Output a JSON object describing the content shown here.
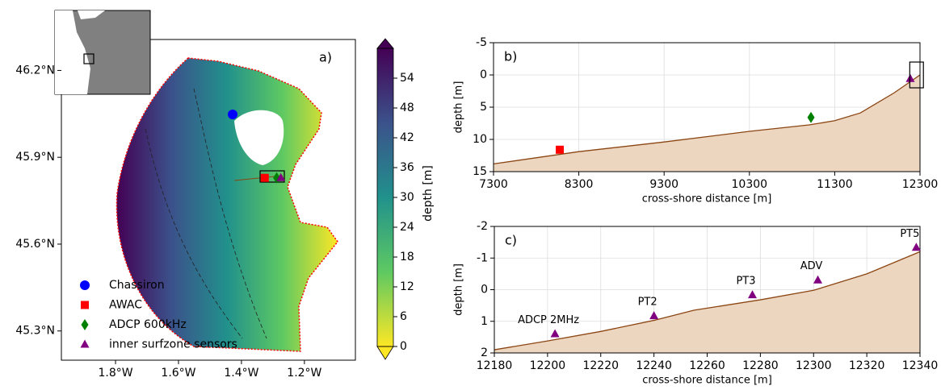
{
  "chart_data": [
    {
      "type": "map",
      "panel_label": "a)",
      "xlim": [
        -1.972,
        -1.038
      ],
      "ylim": [
        45.199,
        46.307
      ],
      "xticks": [
        {
          "value": -1.8,
          "label": "1.8°W"
        },
        {
          "value": -1.6,
          "label": "1.6°W"
        },
        {
          "value": -1.4,
          "label": "1.4°W"
        },
        {
          "value": -1.2,
          "label": "1.2°W"
        }
      ],
      "yticks": [
        {
          "value": 45.3,
          "label": "45.3°N"
        },
        {
          "value": 45.6,
          "label": "45.6°N"
        },
        {
          "value": 45.9,
          "label": "45.9°N"
        },
        {
          "value": 46.2,
          "label": "46.2°N"
        }
      ],
      "legend": "lower left",
      "points": [
        {
          "name": "Chassiron",
          "x": -1.428,
          "y": 46.048,
          "color": "#0000ff",
          "marker": "circle"
        },
        {
          "name": "AWAC",
          "x": -1.326,
          "y": 45.829,
          "color": "#ff0000",
          "marker": "square"
        },
        {
          "name": "ADCP 600kHz",
          "x": -1.288,
          "y": 45.829,
          "color": "#008000",
          "marker": "diamond"
        },
        {
          "name": "inner surfzone sensors",
          "x": -1.275,
          "y": 45.829,
          "color": "#800080",
          "marker": "triangle"
        }
      ],
      "colorbar": {
        "label": "depth [m]",
        "lim": [
          0,
          60
        ],
        "ticks": [
          0,
          6,
          12,
          18,
          24,
          30,
          36,
          42,
          48,
          54
        ]
      }
    },
    {
      "type": "area",
      "panel_label": "b)",
      "xlabel": "cross-shore distance [m]",
      "ylabel": "depth [m]",
      "xlim": [
        7300,
        12300
      ],
      "ylim": [
        15,
        -5
      ],
      "xticks": [
        7300,
        8300,
        9300,
        10300,
        11300,
        12300
      ],
      "yticks": [
        -5,
        0,
        5,
        10,
        15
      ],
      "grid": true,
      "profile": {
        "x": [
          7300,
          8300,
          9300,
          10300,
          11000,
          11300,
          11600,
          12000,
          12300
        ],
        "values": [
          13.8,
          11.9,
          10.4,
          8.75,
          7.75,
          7.1,
          5.9,
          2.75,
          0
        ],
        "color": "#8b4513",
        "fill": "#ecd6bf"
      },
      "points": [
        {
          "x": 8077,
          "y": 11.6,
          "color": "#ff0000",
          "marker": "square"
        },
        {
          "x": 11022,
          "y": 6.6,
          "color": "#008000",
          "marker": "diamond"
        },
        {
          "x": 12186,
          "y": 0.6,
          "color": "#800080",
          "marker": "triangle"
        }
      ]
    },
    {
      "type": "area",
      "panel_label": "c)",
      "xlabel": "cross-shore distance [m]",
      "ylabel": "depth [m]",
      "xlim": [
        12180,
        12340
      ],
      "ylim": [
        2,
        -2
      ],
      "xticks": [
        12180,
        12200,
        12220,
        12240,
        12260,
        12280,
        12300,
        12320,
        12340
      ],
      "yticks": [
        -2,
        -1,
        0,
        1,
        2
      ],
      "grid": true,
      "profile": {
        "x": [
          12180,
          12200,
          12220,
          12240,
          12255,
          12280,
          12300,
          12320,
          12340
        ],
        "values": [
          1.9,
          1.62,
          1.32,
          0.97,
          0.65,
          0.32,
          0.02,
          -0.5,
          -1.2
        ],
        "color": "#8b4513",
        "fill": "#ecd6bf"
      },
      "points": [
        {
          "label": "ADCP 2MHz",
          "x": 12202.8,
          "y": 1.4,
          "color": "#800080",
          "marker": "triangle"
        },
        {
          "label": "PT2",
          "x": 12240,
          "y": 0.83,
          "color": "#800080",
          "marker": "triangle"
        },
        {
          "label": "PT3",
          "x": 12277,
          "y": 0.17,
          "color": "#800080",
          "marker": "triangle"
        },
        {
          "label": "ADV",
          "x": 12301.6,
          "y": -0.3,
          "color": "#800080",
          "marker": "triangle"
        },
        {
          "label": "PT5",
          "x": 12338.6,
          "y": -1.33,
          "color": "#800080",
          "marker": "triangle"
        }
      ]
    }
  ]
}
